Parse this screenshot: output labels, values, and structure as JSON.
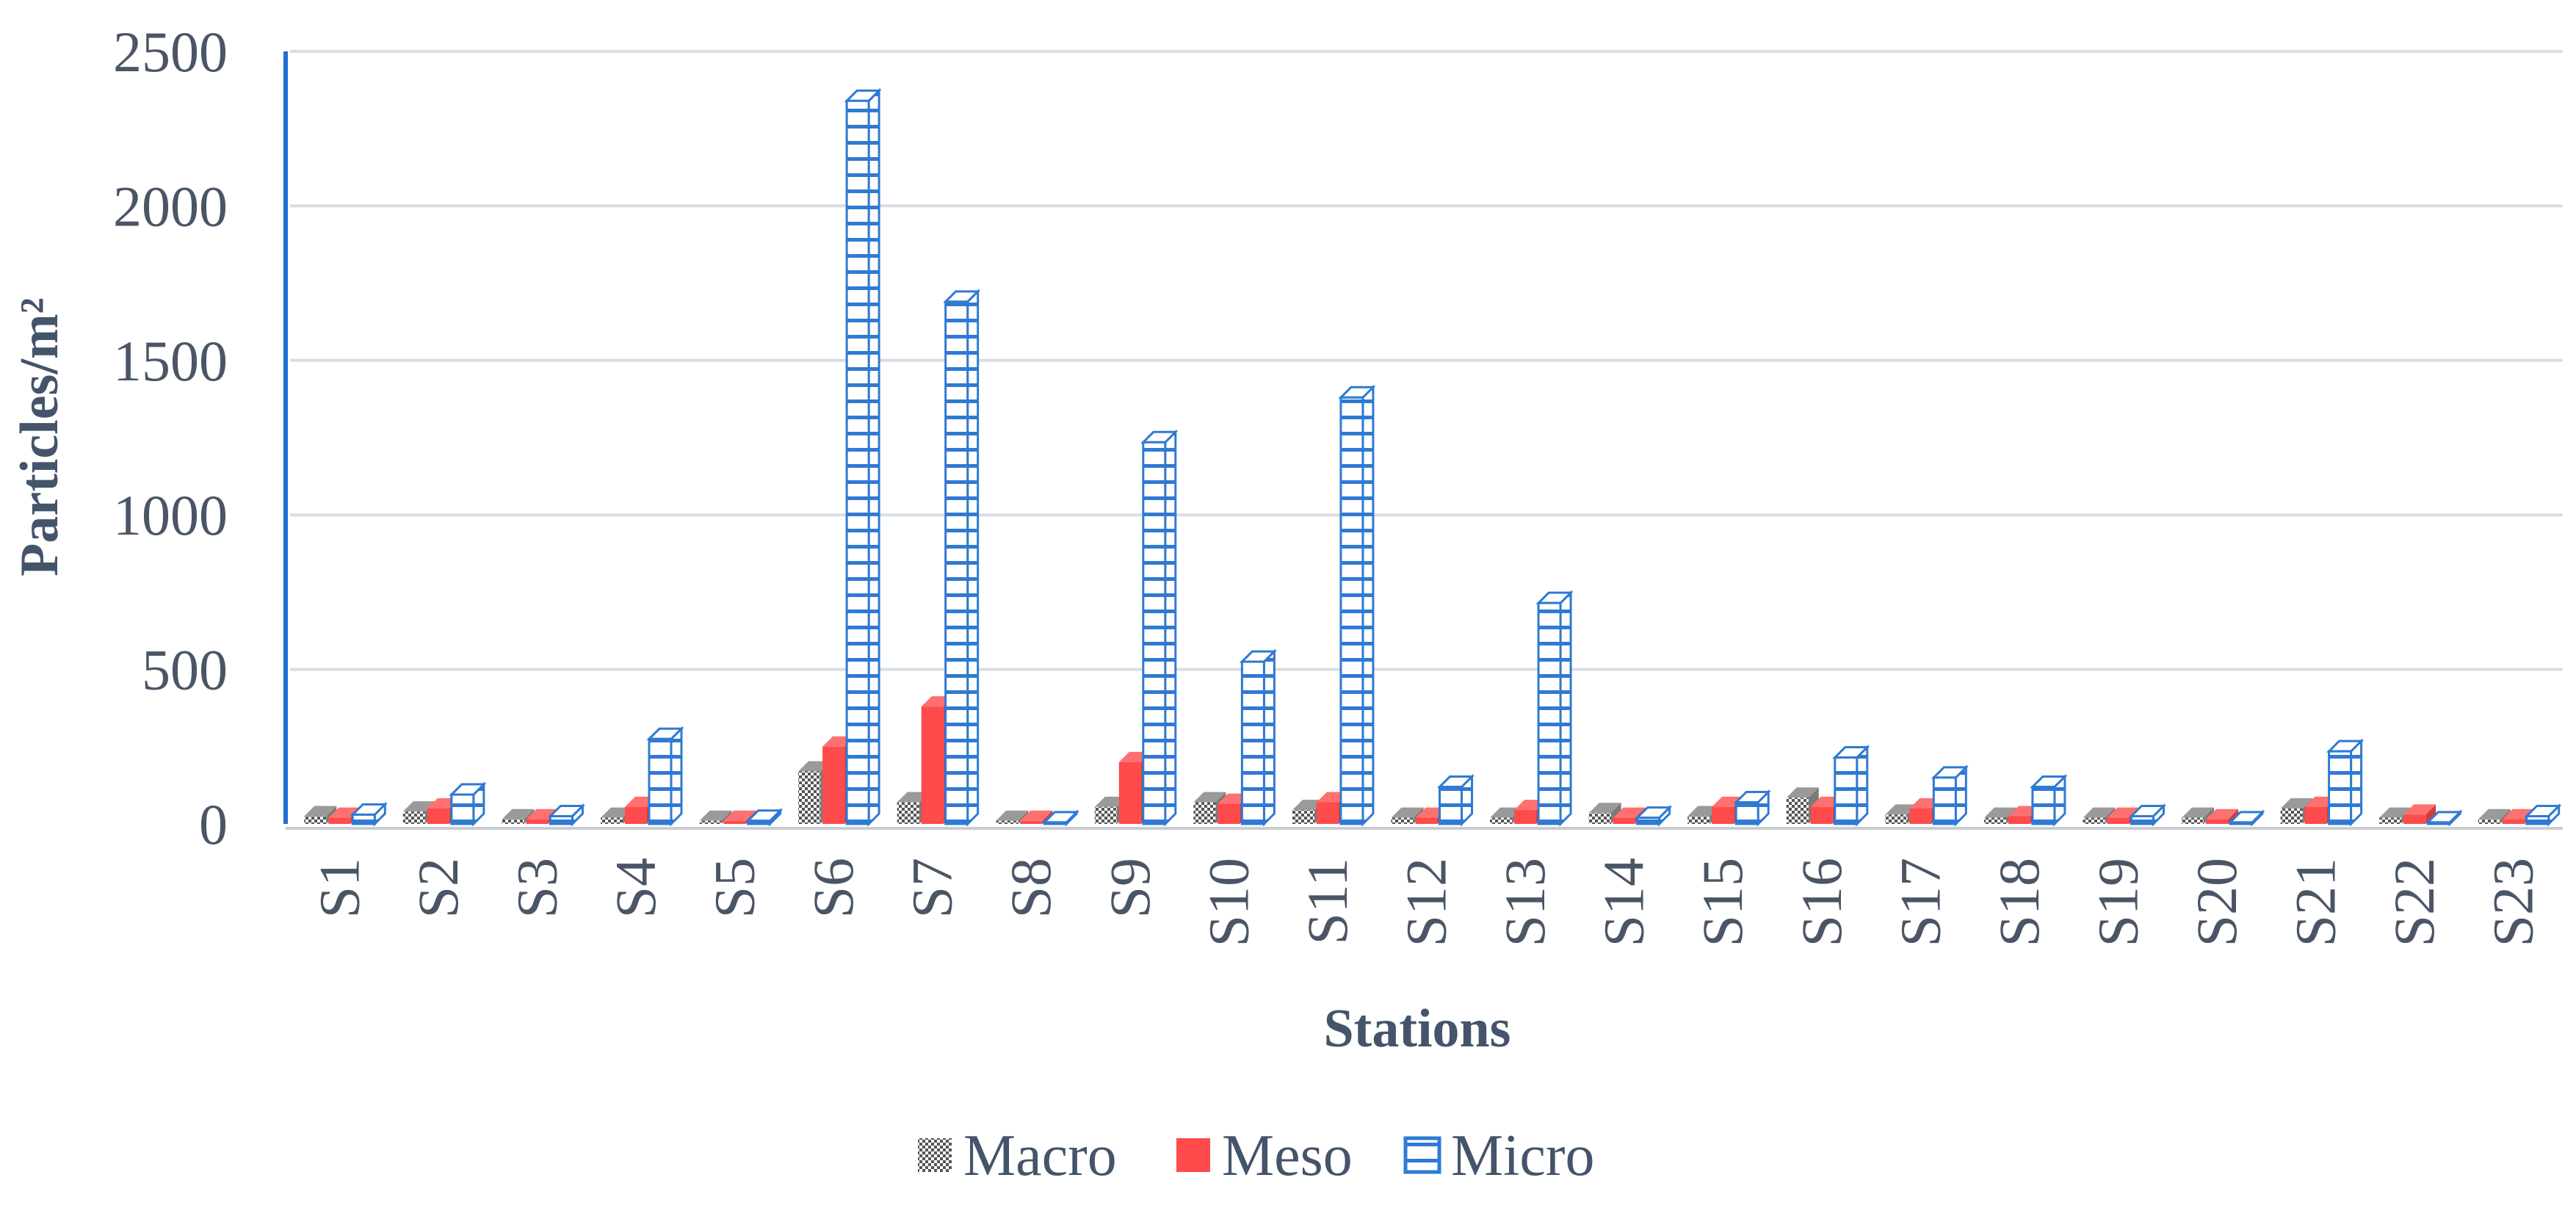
{
  "chart_data": {
    "type": "bar",
    "title": "",
    "xlabel": "Stations",
    "ylabel": "Particles/m²",
    "ylim": [
      0,
      2500
    ],
    "yticks": [
      0,
      500,
      1000,
      1500,
      2000,
      2500
    ],
    "grid": true,
    "legend_position": "bottom",
    "categories": [
      "S1",
      "S2",
      "S3",
      "S4",
      "S5",
      "S6",
      "S7",
      "S8",
      "S9",
      "S10",
      "S11",
      "S12",
      "S13",
      "S14",
      "S15",
      "S16",
      "S17",
      "S18",
      "S19",
      "S20",
      "S21",
      "S22",
      "S23"
    ],
    "series": [
      {
        "name": "Macro",
        "color": "#5a5a5a",
        "pattern": "checker",
        "values": [
          25,
          40,
          15,
          20,
          10,
          170,
          70,
          10,
          55,
          70,
          45,
          20,
          20,
          35,
          25,
          85,
          30,
          20,
          20,
          20,
          50,
          20,
          15
        ]
      },
      {
        "name": "Meso",
        "color": "#ff4b4b",
        "pattern": "solid",
        "values": [
          20,
          50,
          15,
          55,
          10,
          250,
          380,
          10,
          200,
          65,
          70,
          20,
          45,
          20,
          55,
          55,
          50,
          25,
          20,
          15,
          55,
          30,
          15
        ]
      },
      {
        "name": "Micro",
        "color": "#2f7ad3",
        "pattern": "brick",
        "values": [
          30,
          95,
          25,
          275,
          10,
          2340,
          1690,
          5,
          1235,
          525,
          1380,
          120,
          715,
          20,
          70,
          215,
          150,
          120,
          25,
          5,
          235,
          5,
          25
        ]
      }
    ]
  }
}
